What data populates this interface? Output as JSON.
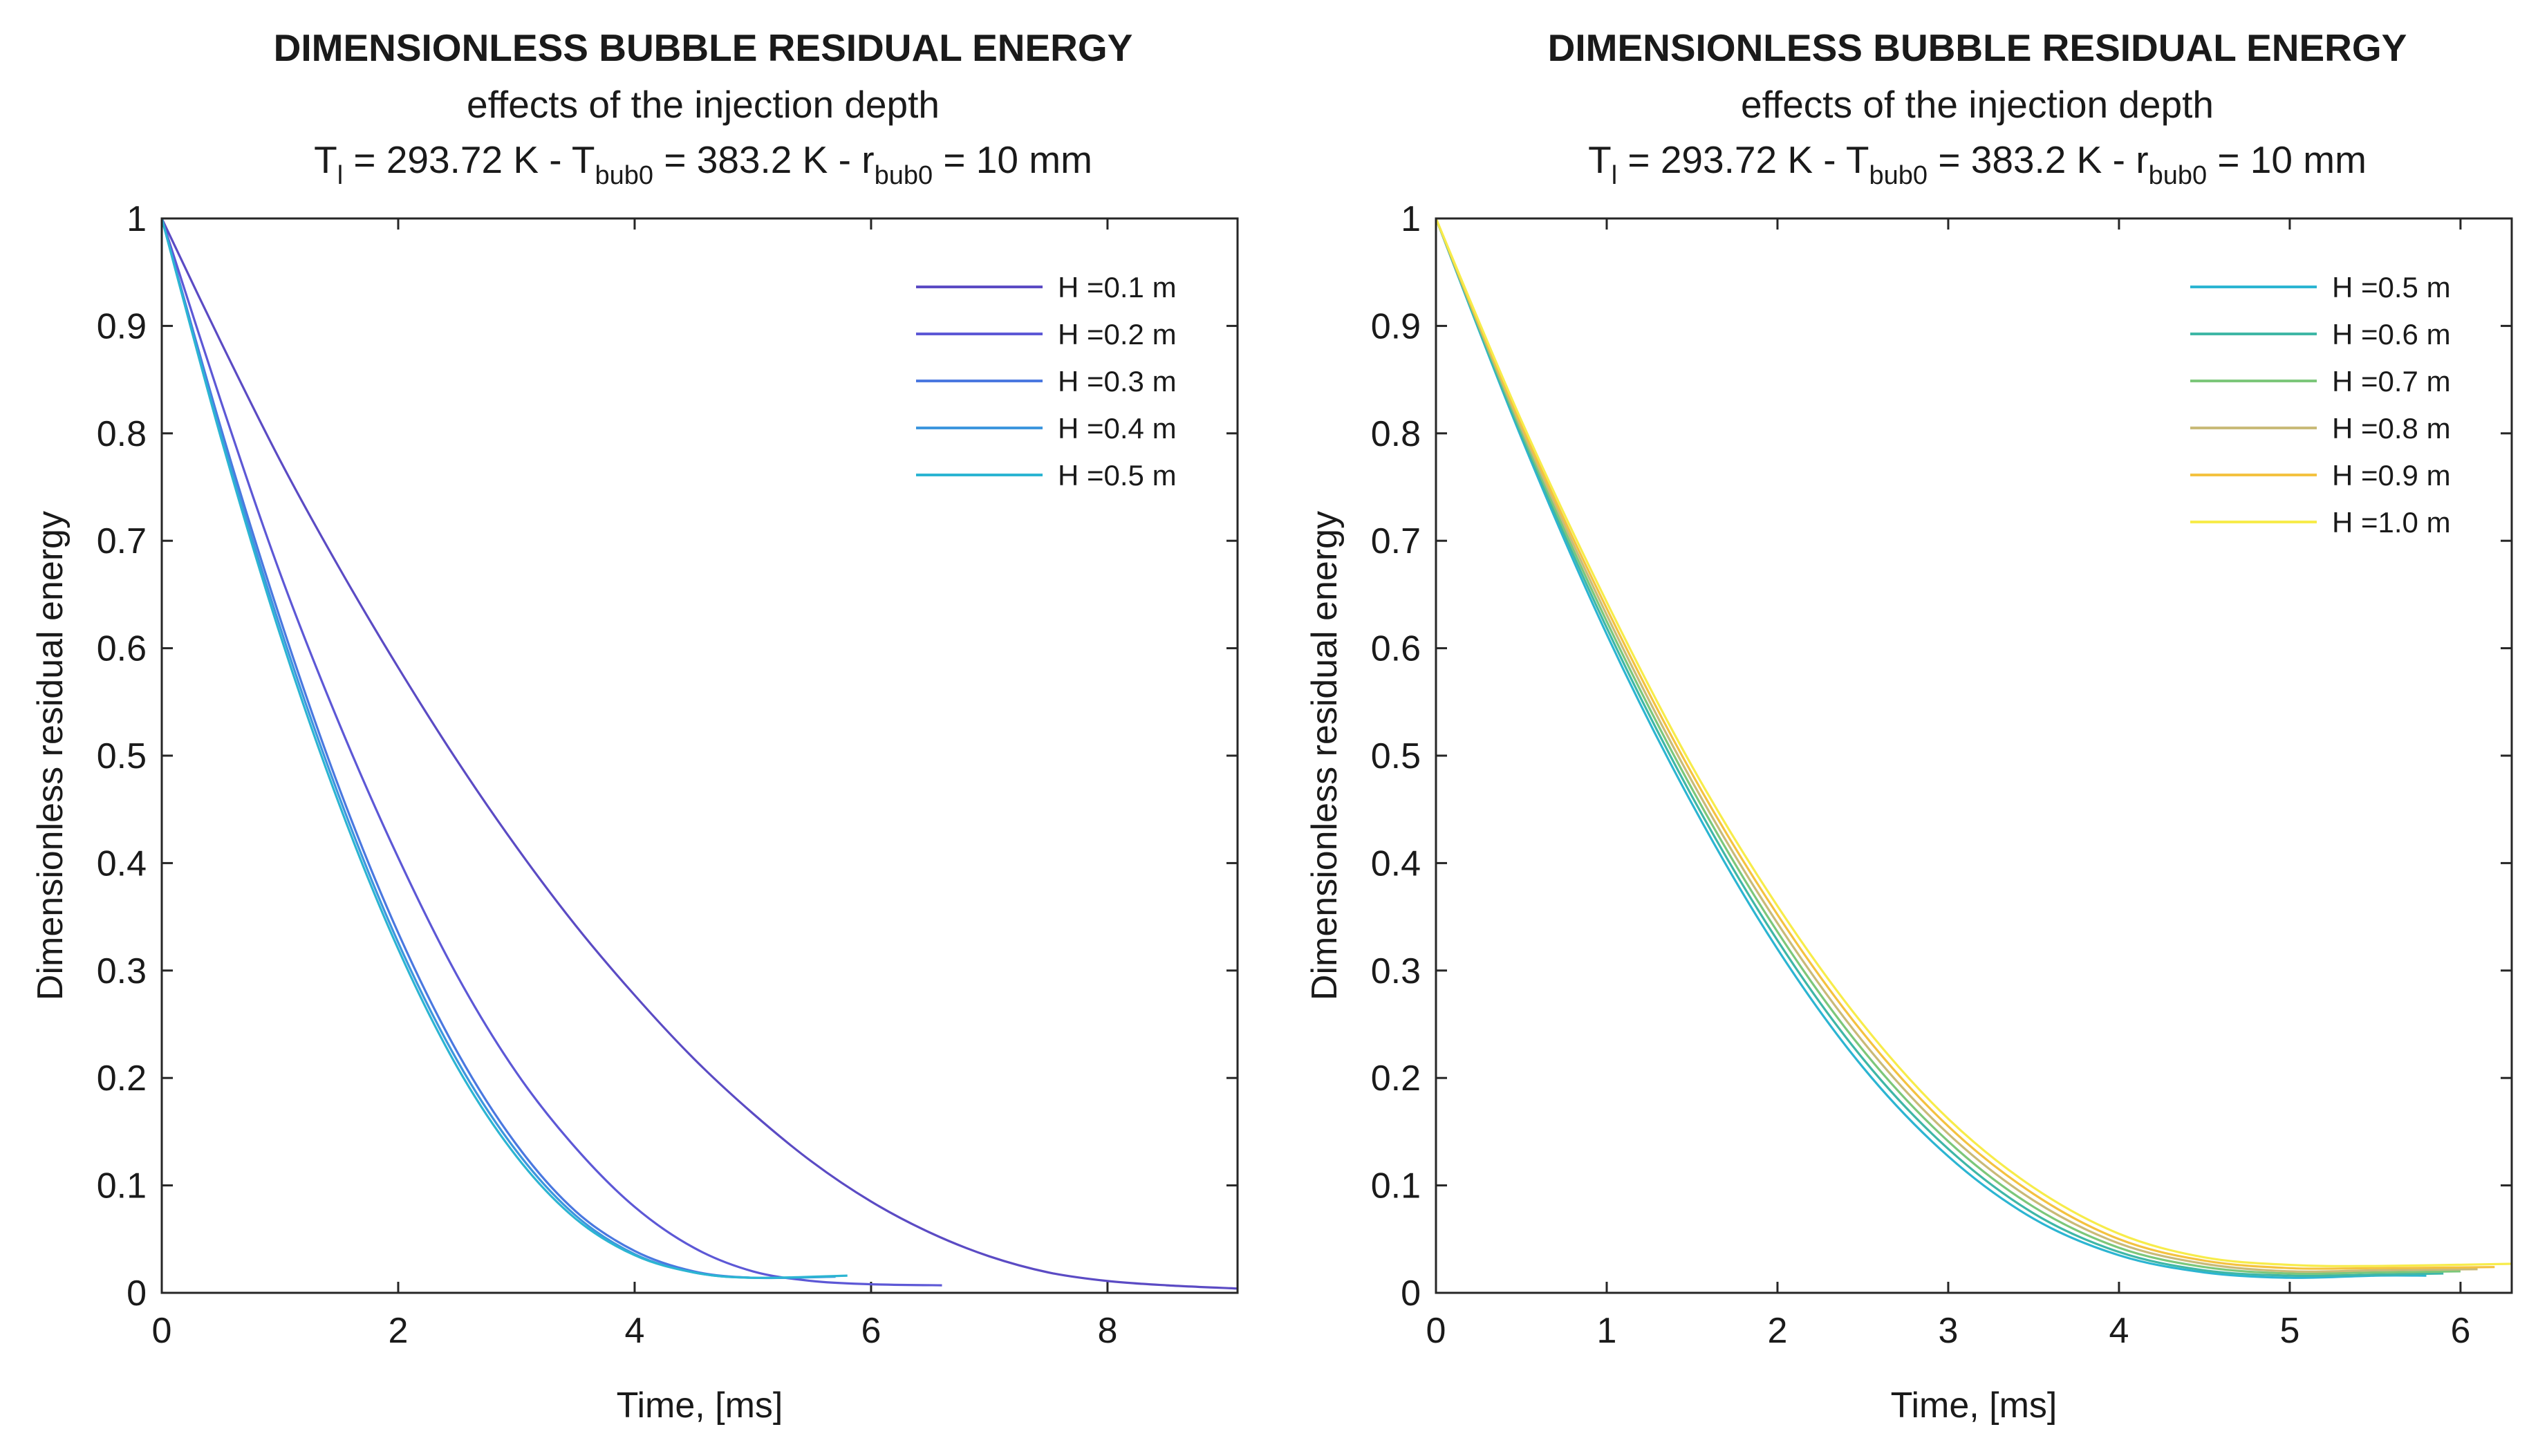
{
  "chart_data": [
    {
      "type": "line",
      "title": "DIMENSIONLESS BUBBLE RESIDUAL ENERGY",
      "subtitle": "effects of the injection depth",
      "conditions": {
        "Tl_sym": "T",
        "Tl_sub": "l",
        "Tl_val": " = 293.72 K - ",
        "Tb_sym": "T",
        "Tb_sub": "bub0",
        "Tb_val": " = 383.2 K - ",
        "r_sym": "r",
        "r_sub": "bub0",
        "r_val": " = 10 mm"
      },
      "xlabel": "Time, [ms]",
      "ylabel": "Dimensionless residual energy",
      "xlim": [
        0,
        9.1
      ],
      "ylim": [
        0,
        1
      ],
      "xticks": [
        0,
        2,
        4,
        6,
        8
      ],
      "yticks": [
        0,
        0.1,
        0.2,
        0.3,
        0.4,
        0.5,
        0.6,
        0.7,
        0.8,
        0.9,
        1
      ],
      "legend_position": "top-right",
      "series": [
        {
          "name": "H =0.1 m",
          "color": "#5b4bc4",
          "x": [
            0,
            0.5,
            1,
            1.5,
            2,
            2.5,
            3,
            3.5,
            4,
            4.5,
            5,
            5.5,
            6,
            6.5,
            7,
            7.5,
            8,
            8.5,
            9.1
          ],
          "y": [
            1,
            0.885,
            0.775,
            0.675,
            0.582,
            0.495,
            0.415,
            0.342,
            0.277,
            0.218,
            0.167,
            0.122,
            0.085,
            0.056,
            0.034,
            0.019,
            0.011,
            0.007,
            0.004
          ]
        },
        {
          "name": "H =0.2 m",
          "color": "#5d58d6",
          "x": [
            0,
            0.5,
            1,
            1.5,
            2,
            2.5,
            3,
            3.5,
            4,
            4.5,
            5,
            5.5,
            6,
            6.6
          ],
          "y": [
            1,
            0.83,
            0.67,
            0.53,
            0.405,
            0.295,
            0.205,
            0.135,
            0.08,
            0.042,
            0.02,
            0.011,
            0.008,
            0.007
          ]
        },
        {
          "name": "H =0.3 m",
          "color": "#4a78e0",
          "x": [
            0,
            0.5,
            1,
            1.5,
            2,
            2.5,
            3,
            3.5,
            4,
            4.5,
            5,
            5.6
          ],
          "y": [
            1,
            0.805,
            0.628,
            0.47,
            0.335,
            0.224,
            0.138,
            0.076,
            0.039,
            0.02,
            0.014,
            0.015
          ]
        },
        {
          "name": "H =0.4 m",
          "color": "#3d96de",
          "x": [
            0,
            0.5,
            1,
            1.5,
            2,
            2.5,
            3,
            3.5,
            4,
            4.5,
            5,
            5.7
          ],
          "y": [
            1,
            0.8,
            0.62,
            0.462,
            0.326,
            0.216,
            0.132,
            0.072,
            0.036,
            0.019,
            0.014,
            0.015
          ]
        },
        {
          "name": "H =0.5 m",
          "color": "#2cb5d2",
          "x": [
            0,
            0.5,
            1,
            1.5,
            2,
            2.5,
            3,
            3.5,
            4,
            4.5,
            5,
            5.8
          ],
          "y": [
            1,
            0.796,
            0.613,
            0.455,
            0.32,
            0.21,
            0.127,
            0.069,
            0.035,
            0.019,
            0.014,
            0.016
          ]
        }
      ]
    },
    {
      "type": "line",
      "title": "DIMENSIONLESS BUBBLE RESIDUAL ENERGY",
      "subtitle": "effects of the injection depth",
      "conditions": {
        "Tl_sym": "T",
        "Tl_sub": "l",
        "Tl_val": " = 293.72 K - ",
        "Tb_sym": "T",
        "Tb_sub": "bub0",
        "Tb_val": " = 383.2 K - ",
        "r_sym": "r",
        "r_sub": "bub0",
        "r_val": " = 10 mm"
      },
      "xlabel": "Time, [ms]",
      "ylabel": "Dimensionless residual energy",
      "xlim": [
        0,
        6.3
      ],
      "ylim": [
        0,
        1
      ],
      "xticks": [
        0,
        1,
        2,
        3,
        4,
        5,
        6
      ],
      "yticks": [
        0,
        0.1,
        0.2,
        0.3,
        0.4,
        0.5,
        0.6,
        0.7,
        0.8,
        0.9,
        1
      ],
      "legend_position": "top-right",
      "series": [
        {
          "name": "H =0.5 m",
          "color": "#2cb5d2",
          "x": [
            0,
            0.5,
            1,
            1.5,
            2,
            2.5,
            3,
            3.5,
            4,
            4.5,
            5,
            5.5,
            5.8
          ],
          "y": [
            1,
            0.796,
            0.613,
            0.455,
            0.32,
            0.21,
            0.127,
            0.069,
            0.035,
            0.019,
            0.014,
            0.016,
            0.016
          ]
        },
        {
          "name": "H =0.6 m",
          "color": "#3fb7a6",
          "x": [
            0,
            0.5,
            1,
            1.5,
            2,
            2.5,
            3,
            3.5,
            4,
            4.5,
            5,
            5.5,
            5.9
          ],
          "y": [
            1,
            0.799,
            0.619,
            0.462,
            0.328,
            0.218,
            0.134,
            0.074,
            0.038,
            0.021,
            0.016,
            0.017,
            0.018
          ]
        },
        {
          "name": "H =0.7 m",
          "color": "#7cc77a",
          "x": [
            0,
            0.5,
            1,
            1.5,
            2,
            2.5,
            3,
            3.5,
            4,
            4.5,
            5,
            5.5,
            6.0
          ],
          "y": [
            1,
            0.802,
            0.625,
            0.469,
            0.336,
            0.226,
            0.141,
            0.08,
            0.042,
            0.024,
            0.018,
            0.019,
            0.02
          ]
        },
        {
          "name": "H =0.8 m",
          "color": "#c9ba78",
          "x": [
            0,
            0.5,
            1,
            1.5,
            2,
            2.5,
            3,
            3.5,
            4,
            4.5,
            5,
            5.5,
            6.1
          ],
          "y": [
            1,
            0.805,
            0.631,
            0.476,
            0.344,
            0.234,
            0.148,
            0.086,
            0.046,
            0.027,
            0.02,
            0.021,
            0.022
          ]
        },
        {
          "name": "H =0.9 m",
          "color": "#f4c240",
          "x": [
            0,
            0.5,
            1,
            1.5,
            2,
            2.5,
            3,
            3.5,
            4,
            4.5,
            5,
            5.5,
            6.2
          ],
          "y": [
            1,
            0.808,
            0.637,
            0.483,
            0.352,
            0.242,
            0.155,
            0.092,
            0.05,
            0.03,
            0.023,
            0.023,
            0.024
          ]
        },
        {
          "name": "H =1.0 m",
          "color": "#f7ec4a",
          "x": [
            0,
            0.5,
            1,
            1.5,
            2,
            2.5,
            3,
            3.5,
            4,
            4.5,
            5,
            5.5,
            6.3
          ],
          "y": [
            1,
            0.812,
            0.643,
            0.49,
            0.36,
            0.25,
            0.162,
            0.098,
            0.055,
            0.033,
            0.026,
            0.025,
            0.027
          ]
        }
      ]
    }
  ]
}
